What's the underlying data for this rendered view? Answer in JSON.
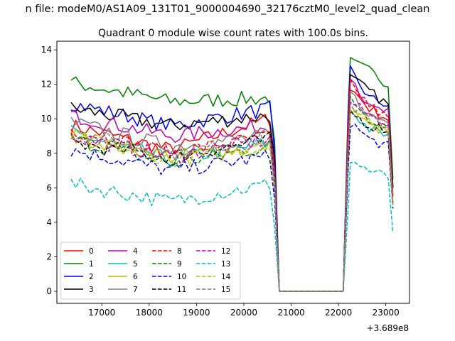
{
  "suptitle": "n file: modeM0/AS1A09_131T01_9000004690_32176cztM0_level2_quad_clean",
  "chart_data": {
    "type": "line",
    "title": "Quadrant 0 module wise count rates with 100.0s bins.",
    "xlabel": "",
    "ylabel": "",
    "offset_label": "+3.689e8",
    "xlim": [
      16050,
      23500
    ],
    "ylim": [
      -0.7,
      14.5
    ],
    "x_ticks": [
      17000,
      18000,
      19000,
      20000,
      21000,
      22000,
      23000
    ],
    "y_ticks": [
      0,
      2,
      4,
      6,
      8,
      10,
      12,
      14
    ],
    "grid": false,
    "legend": {
      "placement": "lower-left",
      "columns": 4
    },
    "segments": [
      {
        "x_start": 16350,
        "x_end": 20550
      },
      {
        "x_start": 22250,
        "x_end": 23050
      }
    ],
    "gap_points": [
      [
        20650,
        "edge"
      ],
      [
        20750,
        0
      ],
      [
        21000,
        0
      ],
      [
        21500,
        0
      ],
      [
        22000,
        0
      ],
      [
        22100,
        0
      ],
      [
        22200,
        "edge"
      ]
    ],
    "tail_points": [
      [
        23150,
        "end"
      ]
    ],
    "series": [
      {
        "name": "0",
        "color": "#ff0000",
        "dash": "solid",
        "first": [
          9.6,
          8.2,
          10.0
        ],
        "second": [
          11.8,
          10.6,
          10.0
        ],
        "end": 5.0
      },
      {
        "name": "1",
        "color": "#008000",
        "dash": "solid",
        "first": [
          12.1,
          11.0,
          11.2
        ],
        "second": [
          13.3,
          12.8,
          12.0
        ],
        "end": 6.5
      },
      {
        "name": "2",
        "color": "#0000ff",
        "dash": "solid",
        "first": [
          10.9,
          9.6,
          10.6
        ],
        "second": [
          12.8,
          11.2,
          10.8
        ],
        "end": 6.0
      },
      {
        "name": "3",
        "color": "#000000",
        "dash": "solid",
        "first": [
          10.6,
          9.6,
          10.2
        ],
        "second": [
          12.4,
          11.6,
          10.8
        ],
        "end": 6.0
      },
      {
        "name": "4",
        "color": "#bf00bf",
        "dash": "solid",
        "first": [
          10.2,
          9.0,
          9.6
        ],
        "second": [
          12.6,
          10.6,
          10.4
        ],
        "end": 5.5
      },
      {
        "name": "5",
        "color": "#00bfbf",
        "dash": "solid",
        "first": [
          9.2,
          7.6,
          8.6
        ],
        "second": [
          10.5,
          9.4,
          9.0
        ],
        "end": 5.0
      },
      {
        "name": "6",
        "color": "#bfbf00",
        "dash": "solid",
        "first": [
          9.0,
          7.8,
          8.4
        ],
        "second": [
          10.6,
          9.6,
          9.2
        ],
        "end": 5.0
      },
      {
        "name": "7",
        "color": "#808080",
        "dash": "solid",
        "first": [
          9.8,
          8.4,
          9.0
        ],
        "second": [
          11.5,
          10.2,
          9.8
        ],
        "end": 5.0
      },
      {
        "name": "8",
        "color": "#ff0000",
        "dash": "dashed",
        "first": [
          9.4,
          8.0,
          9.0
        ],
        "second": [
          12.0,
          10.8,
          10.0
        ],
        "end": 5.5
      },
      {
        "name": "9",
        "color": "#008000",
        "dash": "dashed",
        "first": [
          8.8,
          7.4,
          8.4
        ],
        "second": [
          11.2,
          10.0,
          9.6
        ],
        "end": 5.0
      },
      {
        "name": "10",
        "color": "#0000ff",
        "dash": "dashed",
        "first": [
          8.2,
          7.0,
          7.8
        ],
        "second": [
          9.8,
          8.8,
          8.4
        ],
        "end": 4.8
      },
      {
        "name": "11",
        "color": "#000000",
        "dash": "dashed",
        "first": [
          8.6,
          7.8,
          8.8
        ],
        "second": [
          10.4,
          9.6,
          9.4
        ],
        "end": 5.0
      },
      {
        "name": "12",
        "color": "#bf00bf",
        "dash": "dashed",
        "first": [
          9.0,
          7.8,
          8.8
        ],
        "second": [
          11.0,
          10.2,
          9.8
        ],
        "end": 5.0
      },
      {
        "name": "13",
        "color": "#00bfbf",
        "dash": "dashed",
        "first": [
          6.2,
          5.2,
          6.2
        ],
        "second": [
          7.6,
          7.0,
          6.6
        ],
        "end": 3.4
      },
      {
        "name": "14",
        "color": "#bfbf00",
        "dash": "dashed",
        "first": [
          9.0,
          7.6,
          8.4
        ],
        "second": [
          10.8,
          9.8,
          9.4
        ],
        "end": 5.0
      },
      {
        "name": "15",
        "color": "#808080",
        "dash": "dashed",
        "first": [
          9.2,
          8.0,
          8.8
        ],
        "second": [
          10.8,
          10.0,
          9.6
        ],
        "end": 5.0
      }
    ]
  }
}
